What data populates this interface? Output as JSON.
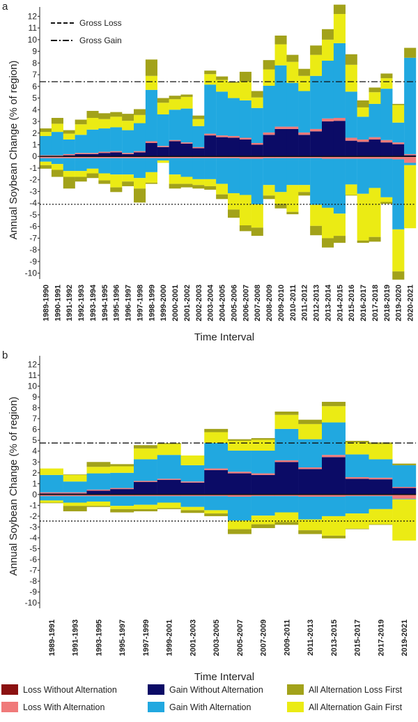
{
  "legend": {
    "items": [
      {
        "key": "loss_without_alternation",
        "label": "Loss Without Alternation",
        "color": "#8b1111"
      },
      {
        "key": "loss_with_alternation",
        "label": "Loss With Alternation",
        "color": "#f07a7a"
      },
      {
        "key": "gain_without_alternation",
        "label": "Gain Without Alternation",
        "color": "#0b0b66"
      },
      {
        "key": "gain_with_alternation",
        "label": "Gain With Alternation",
        "color": "#21a8e0"
      },
      {
        "key": "all_alternation_loss_first",
        "label": "All Alternation Loss First",
        "color": "#a2a21a"
      },
      {
        "key": "all_alternation_gain_first",
        "label": "All Alternation Gain First",
        "color": "#ebeb14"
      }
    ]
  },
  "chart_data": [
    {
      "panel_label": "a",
      "type": "bar",
      "stacked": true,
      "ylabel": "Annual Soybean Change (% of region)",
      "xlabel": "Time Interval",
      "ylim": [
        -10.5,
        12.8
      ],
      "yticks": [
        12,
        11,
        10,
        9,
        8,
        7,
        6,
        5,
        4,
        3,
        2,
        1,
        0,
        -1,
        -2,
        -3,
        -4,
        -5,
        -6,
        -7,
        -8,
        -9,
        -10
      ],
      "reference_lines": [
        {
          "name": "Gross Loss",
          "style": "dashed",
          "legend_label": "Gross Loss",
          "value": -4.1,
          "line_style": "dotted"
        },
        {
          "name": "Gross Gain",
          "style": "dash-dot",
          "legend_label": "Gross Gain",
          "value": 6.4
        }
      ],
      "categories": [
        "1989-1990",
        "1990-1991",
        "1991-1992",
        "1992-1993",
        "1993-1994",
        "1994-1995",
        "1995-1996",
        "1996-1997",
        "1997-1998",
        "1998-1999",
        "1999-2000",
        "2000-2001",
        "2001-2002",
        "2002-2003",
        "2003-2004",
        "2004-2005",
        "2005-2006",
        "2006-2007",
        "2007-2008",
        "2008-2009",
        "2009-2010",
        "2010-2011",
        "2011-2012",
        "2012-2013",
        "2013-2014",
        "2014-2015",
        "2015-2016",
        "2016-2017",
        "2017-2018",
        "2018-2019",
        "2019-2020",
        "2020-2021"
      ],
      "series": [
        {
          "name": "Loss Without Alternation",
          "values": [
            -0.05,
            -0.05,
            -0.05,
            -0.05,
            -0.05,
            -0.05,
            -0.05,
            -0.05,
            -0.05,
            -0.05,
            -0.05,
            -0.05,
            -0.05,
            -0.05,
            -0.05,
            -0.05,
            -0.05,
            -0.05,
            -0.05,
            -0.05,
            -0.05,
            -0.05,
            -0.05,
            -0.05,
            -0.05,
            -0.05,
            -0.05,
            -0.05,
            -0.05,
            -0.05,
            -0.05,
            -0.05
          ]
        },
        {
          "name": "Loss With Alternation",
          "values": [
            -0.1,
            -0.1,
            -0.1,
            -0.1,
            -0.1,
            -0.1,
            -0.1,
            -0.1,
            -0.1,
            -0.1,
            -0.1,
            -0.1,
            -0.1,
            -0.1,
            -0.1,
            -0.1,
            -0.1,
            -0.15,
            -0.15,
            -0.1,
            -0.1,
            -0.1,
            -0.1,
            -0.1,
            -0.15,
            -0.15,
            -0.15,
            -0.15,
            -0.15,
            -0.15,
            -0.2,
            -0.5
          ]
        },
        {
          "name": "Gain Without Alternation",
          "values": [
            0,
            0,
            0.1,
            0.2,
            0.2,
            0.3,
            0.35,
            0.2,
            0.35,
            1.15,
            0.8,
            1.3,
            1.1,
            0.7,
            1.8,
            1.65,
            1.6,
            1.45,
            1.0,
            1.85,
            2.35,
            2.35,
            1.85,
            2.15,
            3.0,
            3.05,
            1.35,
            1.25,
            1.45,
            1.2,
            1.05,
            0.1
          ]
        },
        {
          "name": "Loss With Alternation (gain side)",
          "values": [
            0.1,
            0.1,
            0.1,
            0.1,
            0.1,
            0.1,
            0.1,
            0.1,
            0.1,
            0.15,
            0.1,
            0.1,
            0.1,
            0.1,
            0.15,
            0.15,
            0.15,
            0.15,
            0.15,
            0.2,
            0.2,
            0.2,
            0.2,
            0.2,
            0.25,
            0.25,
            0.25,
            0.2,
            0.2,
            0.2,
            0.15,
            0.1
          ]
        },
        {
          "name": "Gain With Alternation",
          "values": [
            1.65,
            2.0,
            1.25,
            1.55,
            2.0,
            2.0,
            2.05,
            1.95,
            2.4,
            4.4,
            2.7,
            2.6,
            2.9,
            1.8,
            4.2,
            3.75,
            3.25,
            3.2,
            3.0,
            4.0,
            5.25,
            3.75,
            3.55,
            4.55,
            4.95,
            6.4,
            3.95,
            1.95,
            2.85,
            4.4,
            1.7,
            8.25
          ]
        },
        {
          "name": "All Alternation Gain First",
          "values": [
            0.35,
            0.7,
            0.5,
            0.9,
            1.0,
            0.8,
            0.9,
            0.8,
            0.7,
            1.2,
            1.0,
            0.9,
            1.0,
            0.6,
            0.9,
            1.0,
            1.3,
            1.6,
            0.9,
            1.4,
            1.8,
            1.8,
            1.3,
            1.8,
            1.8,
            2.5,
            2.3,
            0.8,
            1.0,
            0.9,
            1.5,
            0.0
          ]
        },
        {
          "name": "All Alternation Loss First",
          "values": [
            0.3,
            0.5,
            0.3,
            0.4,
            0.6,
            0.5,
            0.4,
            0.6,
            0.5,
            1.4,
            0.4,
            0.3,
            0.2,
            0.3,
            0.3,
            0.3,
            0.1,
            0.85,
            0.55,
            0.8,
            0.75,
            0.6,
            0.6,
            0.8,
            0.9,
            0.8,
            0.9,
            0.6,
            0.4,
            0.4,
            0.1,
            0.85
          ]
        },
        {
          "name": "Gain With Alternation (loss side)",
          "values": [
            -0.3,
            -0.5,
            -1.1,
            -1.1,
            -0.9,
            -1.3,
            -1.4,
            -1.4,
            -1.7,
            -1.2,
            -0.2,
            -1.4,
            -1.6,
            -1.8,
            -1.8,
            -2.2,
            -3.0,
            -3.1,
            -3.9,
            -2.3,
            -2.9,
            -2.3,
            -2.3,
            -4.0,
            -4.2,
            -4.7,
            -2.2,
            -3.0,
            -2.5,
            -3.3,
            -6.0,
            -0.2
          ]
        },
        {
          "name": "All Alternation Gain First (loss side)",
          "values": [
            -0.3,
            -0.5,
            -0.5,
            -0.5,
            -0.4,
            -0.6,
            -1.1,
            -0.6,
            -0.9,
            -0.9,
            -0.2,
            -0.8,
            -0.6,
            -0.5,
            -0.6,
            -0.9,
            -1.4,
            -2.6,
            -2.0,
            -0.9,
            -1.0,
            -2.3,
            -0.6,
            -1.8,
            -2.6,
            -1.9,
            -0.9,
            -4.0,
            -4.2,
            -0.4,
            -3.6,
            -5.4
          ]
        },
        {
          "name": "All Alternation Loss First (loss side)",
          "values": [
            -0.3,
            -0.6,
            -1.0,
            -0.4,
            -0.4,
            -0.3,
            -0.4,
            -0.4,
            -1.2,
            -0.1,
            0,
            -0.4,
            -0.3,
            -0.3,
            -0.3,
            -0.4,
            -0.7,
            -0.5,
            -0.7,
            -0.3,
            -0.4,
            -0.2,
            -0.3,
            -0.8,
            -0.8,
            -0.6,
            -0.05,
            -0.2,
            -0.4,
            -0.15,
            -0.7,
            0
          ]
        }
      ]
    },
    {
      "panel_label": "b",
      "type": "bar",
      "stacked": true,
      "ylabel": "Annual Soybean Change (% of region)",
      "xlabel": "Time Interval",
      "ylim": [
        -10.5,
        12.8
      ],
      "yticks": [
        12,
        11,
        10,
        9,
        8,
        7,
        6,
        5,
        4,
        3,
        2,
        1,
        0,
        -1,
        -2,
        -3,
        -4,
        -5,
        -6,
        -7,
        -8,
        -9,
        -10
      ],
      "reference_lines": [
        {
          "name": "Gross Loss",
          "value": -2.45,
          "line_style": "dotted"
        },
        {
          "name": "Gross Gain",
          "value": 4.75,
          "line_style": "dash-dot"
        }
      ],
      "categories": [
        "1989-1991",
        "1991-1993",
        "1993-1995",
        "1995-1997",
        "1997-1999",
        "1999-2001",
        "2001-2003",
        "2003-2005",
        "2005-2007",
        "2007-2009",
        "2009-2011",
        "2011-2013",
        "2013-2015",
        "2015-2017",
        "2017-2019",
        "2019-2021"
      ],
      "series": [
        {
          "name": "Loss Without Alternation",
          "values": [
            -0.05,
            -0.05,
            -0.05,
            -0.05,
            -0.05,
            -0.05,
            -0.05,
            -0.05,
            -0.05,
            -0.05,
            -0.05,
            -0.05,
            -0.05,
            -0.05,
            -0.05,
            -0.05
          ]
        },
        {
          "name": "Loss With Alternation",
          "values": [
            -0.1,
            -0.1,
            -0.1,
            -0.1,
            -0.1,
            -0.1,
            -0.1,
            -0.1,
            -0.15,
            -0.1,
            -0.1,
            -0.15,
            -0.15,
            -0.1,
            -0.1,
            -0.35
          ]
        },
        {
          "name": "Gain Without Alternation",
          "values": [
            0.1,
            0.1,
            0.35,
            0.5,
            1.15,
            1.35,
            1.1,
            2.25,
            1.95,
            1.8,
            3.0,
            2.35,
            3.45,
            1.45,
            1.4,
            0.6
          ]
        },
        {
          "name": "Loss With Alternation (gain side)",
          "values": [
            0.1,
            0.1,
            0.1,
            0.1,
            0.1,
            0.1,
            0.1,
            0.15,
            0.15,
            0.15,
            0.15,
            0.15,
            0.2,
            0.15,
            0.15,
            0.1
          ]
        },
        {
          "name": "Gain With Alternation",
          "values": [
            1.6,
            1.0,
            1.5,
            1.4,
            2.0,
            2.2,
            1.5,
            2.35,
            1.95,
            2.1,
            2.9,
            2.6,
            3.0,
            2.1,
            1.7,
            2.0
          ]
        },
        {
          "name": "All Alternation Gain First",
          "values": [
            0.6,
            0.6,
            0.6,
            0.6,
            1.0,
            1.0,
            0.9,
            1.0,
            0.9,
            1.0,
            1.3,
            1.4,
            1.5,
            1.1,
            1.4,
            0.0
          ]
        },
        {
          "name": "All Alternation Loss First",
          "values": [
            0,
            0.05,
            0.45,
            0.2,
            0.3,
            0.1,
            0,
            0.3,
            0.15,
            0.15,
            0.3,
            0.4,
            0.4,
            0.15,
            0.15,
            0.15
          ]
        },
        {
          "name": "Gain With Alternation (loss side)",
          "values": [
            -0.4,
            -0.6,
            -0.5,
            -0.9,
            -0.8,
            -0.6,
            -1.0,
            -1.3,
            -2.2,
            -1.8,
            -1.5,
            -2.1,
            -1.8,
            -1.6,
            -1.2,
            -0.05
          ]
        },
        {
          "name": "All Alternation Gain First (loss side)",
          "values": [
            -0.2,
            -0.3,
            -0.4,
            -0.3,
            -0.4,
            -0.5,
            -0.3,
            -0.3,
            -0.8,
            -0.8,
            -0.9,
            -1.0,
            -1.8,
            -1.4,
            -1.4,
            -3.8
          ]
        },
        {
          "name": "All Alternation Loss First (loss side)",
          "values": [
            -0.05,
            -0.5,
            -0.1,
            -0.3,
            -0.2,
            -0.1,
            -0.25,
            -0.25,
            -0.45,
            -0.35,
            -0.25,
            -0.35,
            -0.25,
            -0.05,
            -0.05,
            0
          ]
        }
      ]
    }
  ]
}
